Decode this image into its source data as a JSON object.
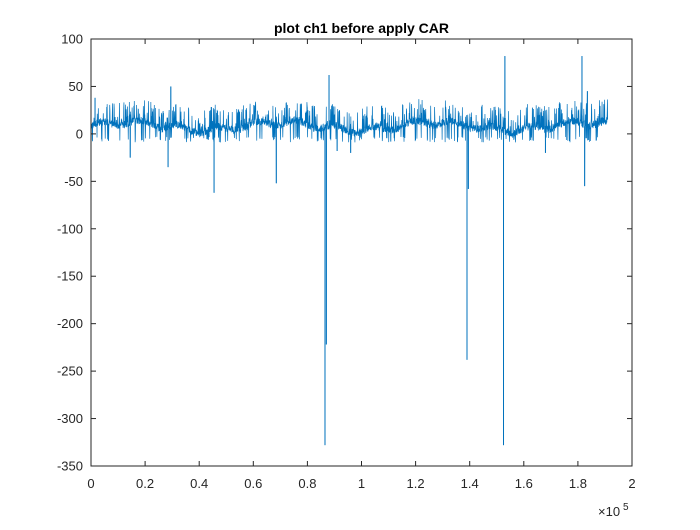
{
  "chart_data": {
    "type": "line",
    "title": "plot ch1 before apply CAR",
    "xlabel": "",
    "ylabel": "",
    "xlim": [
      0,
      200000
    ],
    "ylim": [
      -350,
      100
    ],
    "x_exponent_label": "×10",
    "x_exponent_power": "5",
    "x_ticks": [
      0,
      20000,
      40000,
      60000,
      80000,
      100000,
      120000,
      140000,
      160000,
      180000,
      200000
    ],
    "x_tick_labels": [
      "0",
      "0.2",
      "0.4",
      "0.6",
      "0.8",
      "1",
      "1.2",
      "1.4",
      "1.6",
      "1.8",
      "2"
    ],
    "y_ticks": [
      100,
      50,
      0,
      -50,
      -100,
      -150,
      -200,
      -250,
      -300,
      -350
    ],
    "y_tick_labels": [
      "100",
      "50",
      "0",
      "-50",
      "-100",
      "-150",
      "-200",
      "-250",
      "-300",
      "-350"
    ],
    "grid": false,
    "box": true,
    "x_range_of_data": [
      0,
      191000
    ],
    "baseline_level": 8,
    "noise_upper_envelope": 28,
    "noise_lower_envelope": -3,
    "series": [
      {
        "color": "#0072BD",
        "spikes": [
          {
            "x": 1500,
            "y": 38
          },
          {
            "x": 14500,
            "y": -25
          },
          {
            "x": 28500,
            "y": -35
          },
          {
            "x": 29500,
            "y": 50
          },
          {
            "x": 45500,
            "y": -62
          },
          {
            "x": 68500,
            "y": -52
          },
          {
            "x": 86500,
            "y": -328
          },
          {
            "x": 87000,
            "y": -222
          },
          {
            "x": 88000,
            "y": 62
          },
          {
            "x": 91000,
            "y": -18
          },
          {
            "x": 96000,
            "y": -20
          },
          {
            "x": 139000,
            "y": -238
          },
          {
            "x": 139500,
            "y": -58
          },
          {
            "x": 152500,
            "y": -328
          },
          {
            "x": 153000,
            "y": 82
          },
          {
            "x": 168000,
            "y": -20
          },
          {
            "x": 181500,
            "y": 82
          },
          {
            "x": 182500,
            "y": -55
          },
          {
            "x": 183500,
            "y": 45
          }
        ]
      }
    ]
  }
}
